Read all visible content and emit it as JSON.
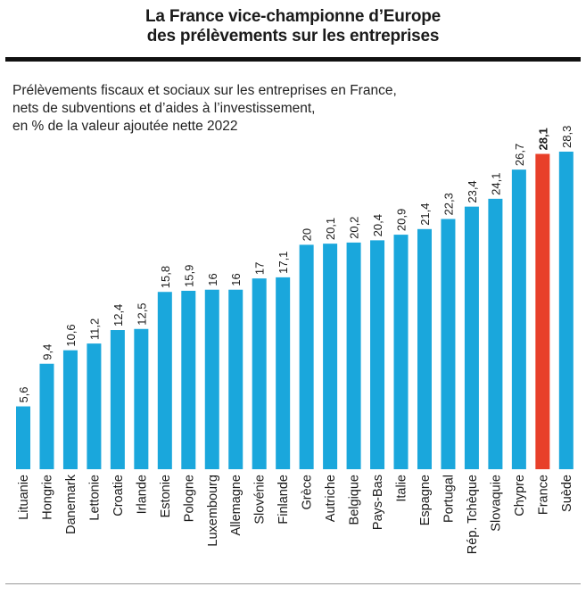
{
  "header": {
    "title_line1": "La France vice-championne d’Europe",
    "title_line2": "des prélèvements sur les entreprises"
  },
  "chart_data": {
    "type": "bar",
    "subtitle_lines": [
      "Prélèvements fiscaux et sociaux sur les entreprises en France,",
      "nets de subventions et d’aides à l’investissement,",
      "en % de la valeur ajoutée nette 2022"
    ],
    "categories": [
      "Lituanie",
      "Hongrie",
      "Danemark",
      "Lettonie",
      "Croatie",
      "Irlande",
      "Estonie",
      "Pologne",
      "Luxembourg",
      "Allemagne",
      "Slovénie",
      "Finlande",
      "Grèce",
      "Autriche",
      "Belgique",
      "Pays-Bas",
      "Italie",
      "Espagne",
      "Portugal",
      "Rép. Tchèque",
      "Slovaquie",
      "Chypre",
      "France",
      "Suède"
    ],
    "values": [
      5.6,
      9.4,
      10.6,
      11.2,
      12.4,
      12.5,
      15.8,
      15.9,
      16,
      16,
      17,
      17.1,
      20,
      20.1,
      20.2,
      20.4,
      20.9,
      21.4,
      22.3,
      23.4,
      24.1,
      26.7,
      28.1,
      28.3
    ],
    "value_labels": [
      "5,6",
      "9,4",
      "10,6",
      "11,2",
      "12,4",
      "12,5",
      "15,8",
      "15,9",
      "16",
      "16",
      "17",
      "17,1",
      "20",
      "20,1",
      "20,2",
      "20,4",
      "20,9",
      "21,4",
      "22,3",
      "23,4",
      "24,1",
      "26,7",
      "28,1",
      "28,3"
    ],
    "highlight": "France",
    "colors": {
      "bar": "#1aa7dc",
      "highlight": "#e8402a",
      "text": "#1a1a1a"
    },
    "ylim": [
      0,
      28.3
    ],
    "grid": false,
    "legend": "none"
  }
}
